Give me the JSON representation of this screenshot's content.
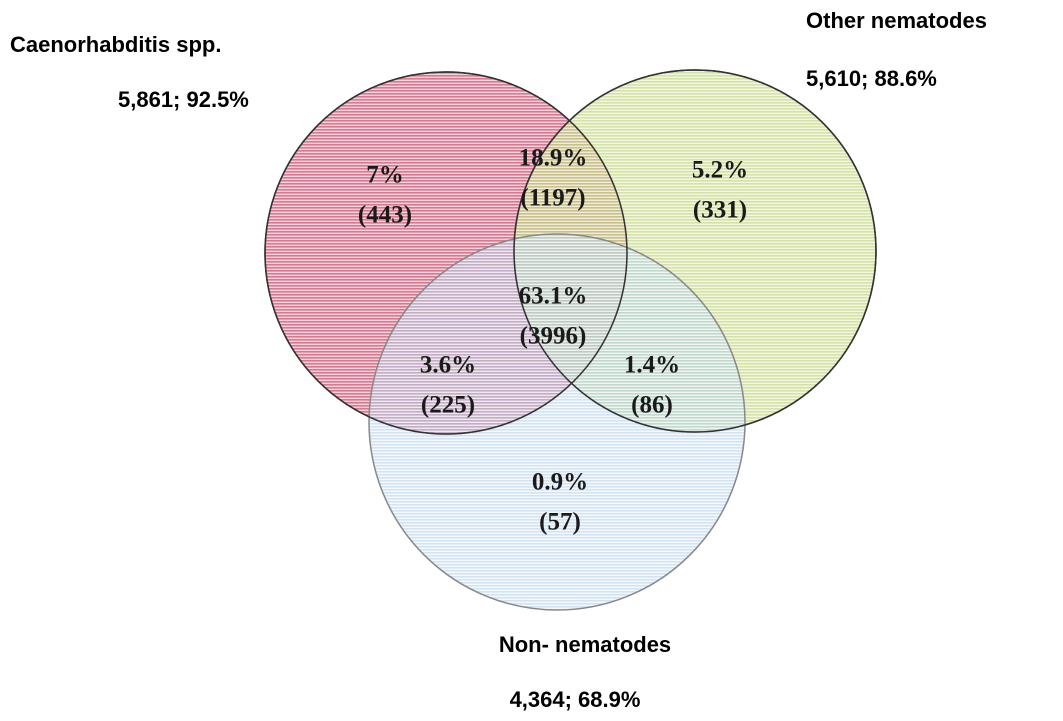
{
  "sets": [
    {
      "name": "Caenorhabditis spp.",
      "summary": "5,861; 92.5%"
    },
    {
      "name": "Other nematodes",
      "summary": "5,610; 88.6%"
    },
    {
      "name": "Non- nematodes",
      "summary": "4,364; 68.9%"
    }
  ],
  "regions": [
    {
      "percent": "7%",
      "count": "(443)"
    },
    {
      "percent": "18.9%",
      "count": "(1197)"
    },
    {
      "percent": "5.2%",
      "count": "(331)"
    },
    {
      "percent": "63.1%",
      "count": "(3996)"
    },
    {
      "percent": "3.6%",
      "count": "(225)"
    },
    {
      "percent": "1.4%",
      "count": "(86)"
    },
    {
      "percent": "0.9%",
      "count": "(57)"
    }
  ]
}
